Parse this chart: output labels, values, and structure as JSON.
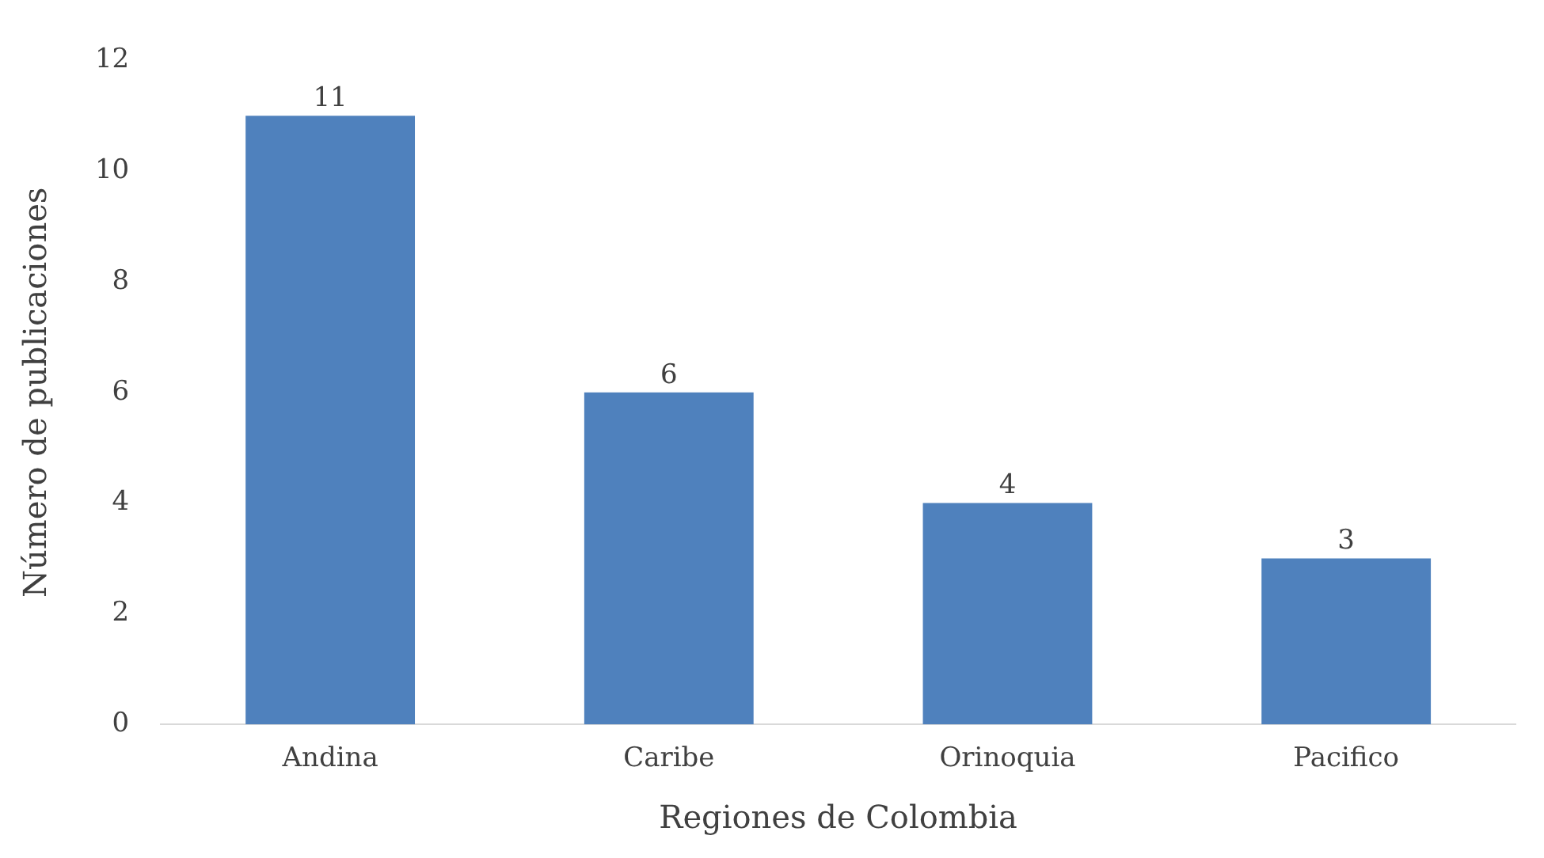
{
  "chart_data": {
    "type": "bar",
    "xlabel": "Regiones de Colombia",
    "ylabel": "Número de publicaciones",
    "categories": [
      "Andina",
      "Caribe",
      "Orinoquia",
      "Pacifico"
    ],
    "values": [
      11,
      6,
      4,
      3
    ],
    "color": "#4f81bd",
    "ylim": [
      0,
      12
    ],
    "yticks": [
      0,
      2,
      4,
      6,
      8,
      10,
      12
    ],
    "grid": false,
    "legend": false,
    "data_labels": true
  }
}
